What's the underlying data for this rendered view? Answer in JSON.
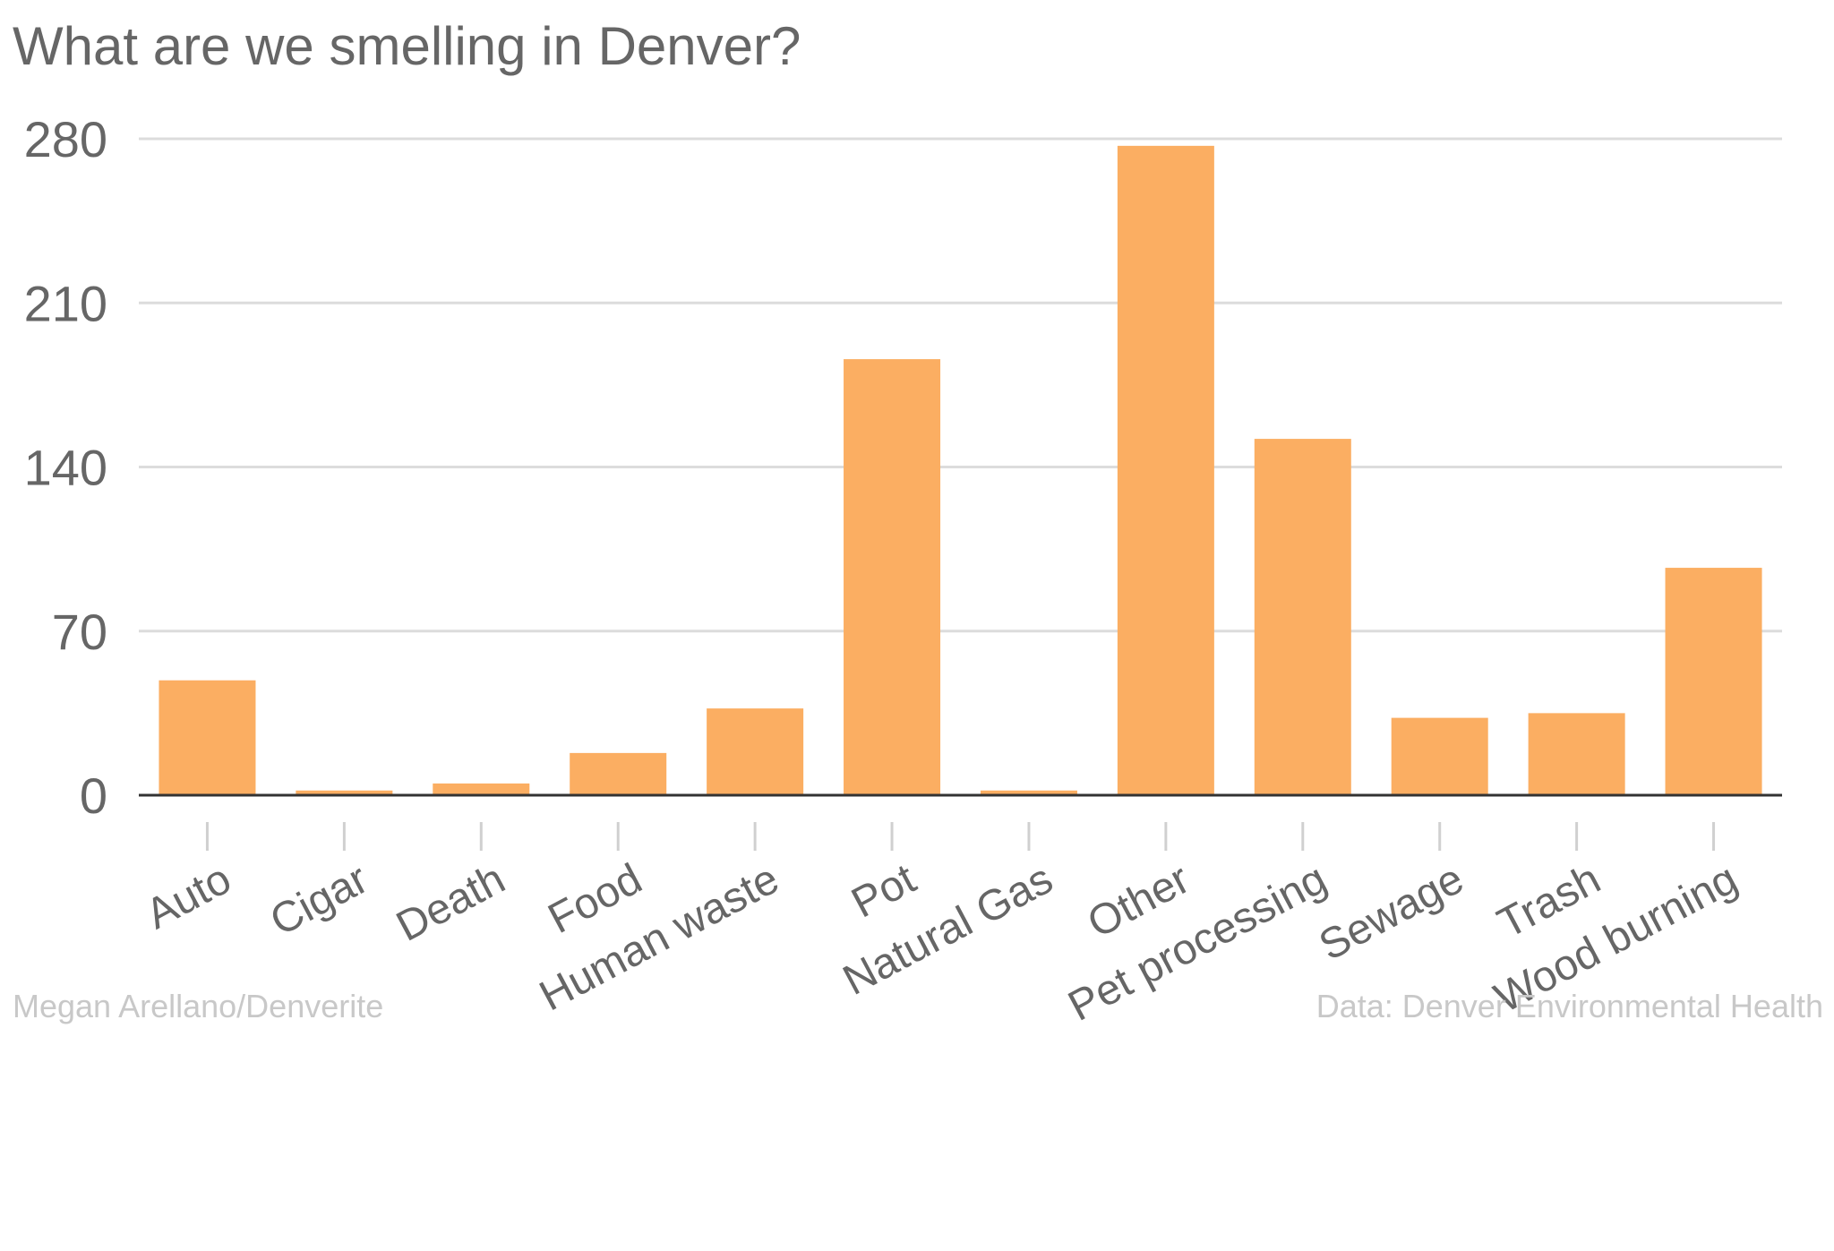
{
  "chart_data": {
    "type": "bar",
    "title": "What are we smelling in Denver?",
    "xlabel": "",
    "ylabel": "",
    "categories": [
      "Auto",
      "Cigar",
      "Death",
      "Food",
      "Human waste",
      "Pot",
      "Natural Gas",
      "Other",
      "Pet processing",
      "Sewage",
      "Trash",
      "Wood burning"
    ],
    "values": [
      49,
      2,
      5,
      18,
      37,
      186,
      2,
      277,
      152,
      33,
      35,
      97
    ],
    "ylim": [
      0,
      280
    ],
    "yticks": [
      0,
      70,
      140,
      210,
      280
    ],
    "grid": true,
    "bar_color": "#fbae62",
    "credit": "Megan Arellano/Denverite",
    "source": "Data: Denver Environmental Health"
  }
}
